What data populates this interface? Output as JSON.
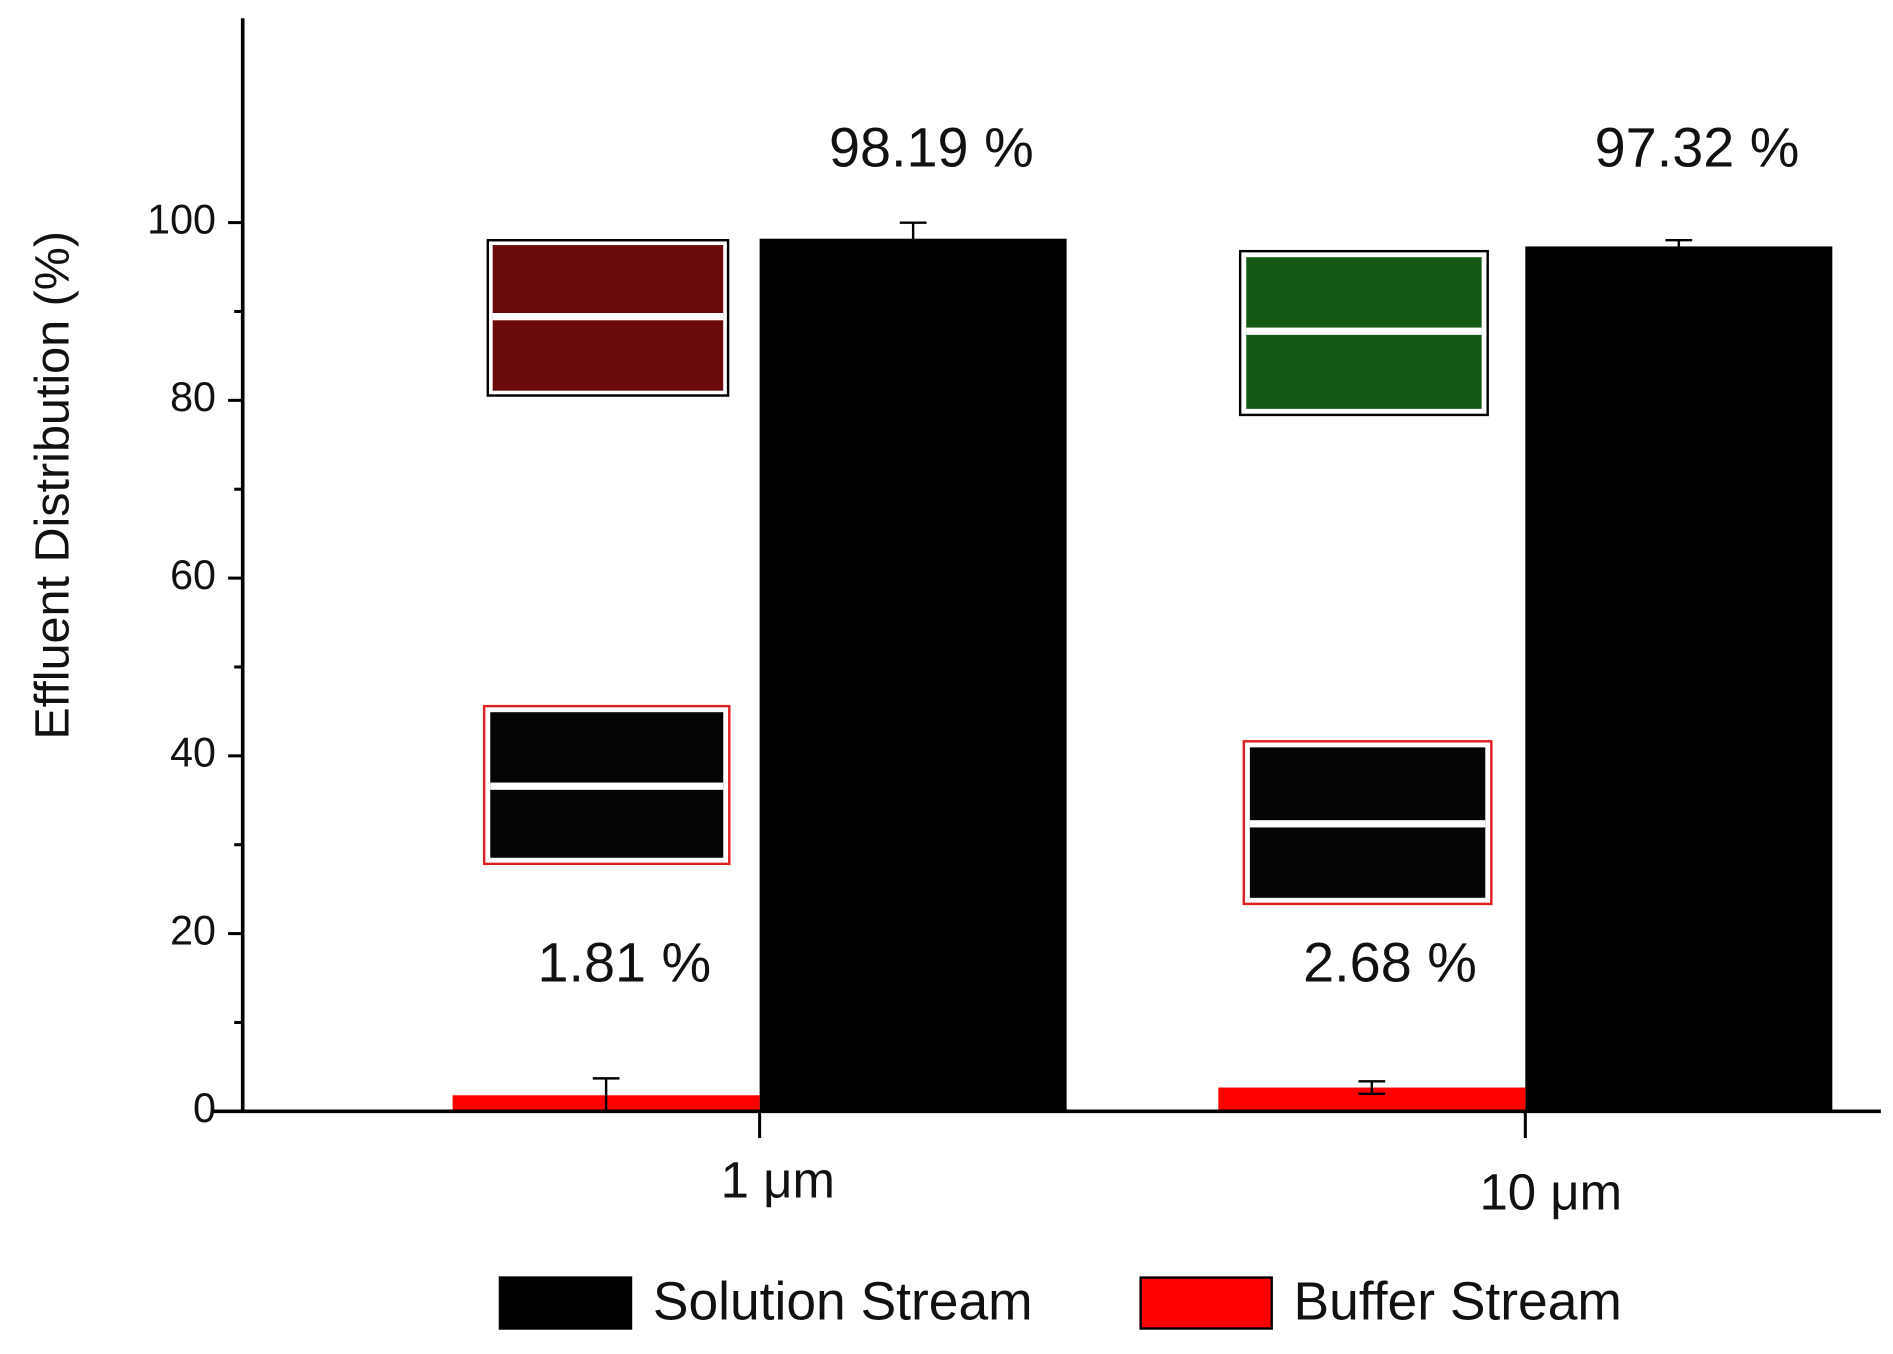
{
  "chart_data": {
    "type": "bar",
    "y_label": "Effluent Distribution (%)",
    "categories": [
      "1 μm",
      "10 μm"
    ],
    "series": [
      {
        "name": "Solution Stream",
        "color": "#000000",
        "values": [
          98.19,
          97.32
        ],
        "errors": [
          1.8,
          0.7
        ],
        "value_labels": [
          "98.19 %",
          "97.32 %"
        ]
      },
      {
        "name": "Buffer Stream",
        "color": "#ff0000",
        "values": [
          1.81,
          2.68
        ],
        "errors": [
          1.9,
          0.7
        ],
        "value_labels": [
          "1.81 %",
          "2.68 %"
        ]
      }
    ],
    "ylim": [
      0,
      123
    ],
    "yticks": [
      0,
      20,
      40,
      60,
      80,
      100
    ],
    "minor_yticks": [
      10,
      30,
      50,
      70,
      90
    ],
    "grid": false
  }
}
